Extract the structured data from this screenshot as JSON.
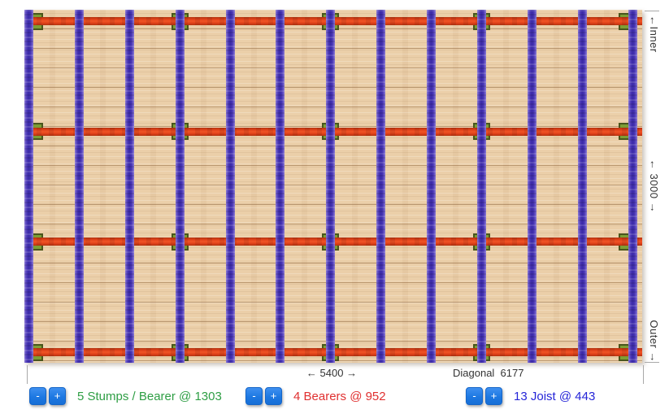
{
  "colors": {
    "wood": "#ebcfa9",
    "bearer_main": "#e2421a",
    "joist_main": "#4a37b6",
    "stump_fill": "#7d9e35",
    "stump_border": "#49561d",
    "button_blue": "#1d78e2",
    "label_stumps": "#2e9e44",
    "label_bearers": "#e03030",
    "label_joists": "#2525d8",
    "dim_text": "#333333"
  },
  "deck": {
    "stumps_per_bearer": 5,
    "bearers": 4,
    "joists": 13
  },
  "dimensions": {
    "width_label": "← 5400 →",
    "diagonal_label": "Diagonal  6177",
    "inner_label": "←Inner",
    "height_label": "← 3000 →",
    "outer_label": "Outer →"
  },
  "controls": {
    "minus_label": "-",
    "plus_label": "+",
    "stumps": {
      "label": "5 Stumps / Bearer @ 1303"
    },
    "bearers": {
      "label": "4 Bearers @ 952"
    },
    "joists": {
      "label": "13 Joist @ 443"
    }
  }
}
